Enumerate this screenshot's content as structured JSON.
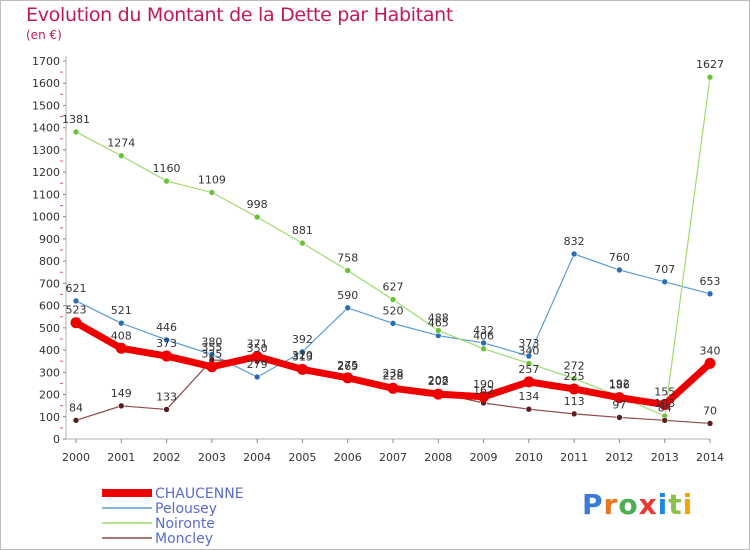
{
  "title": "Evolution du Montant de la Dette par Habitant",
  "unit": "(en €)",
  "logo": {
    "text": "Proxiti",
    "colors": [
      "#3a7bd5",
      "#e87722",
      "#4caf50",
      "#e53935",
      "#1e88e5",
      "#8bc34a",
      "#f4a300"
    ]
  },
  "chart_data": {
    "type": "line",
    "title": "Evolution du Montant de la Dette par Habitant",
    "ylabel": "(en €)",
    "xlabel": "",
    "ylim": [
      0,
      1700
    ],
    "yticks": [
      0,
      100,
      200,
      300,
      400,
      500,
      600,
      700,
      800,
      900,
      1000,
      1100,
      1200,
      1300,
      1400,
      1500,
      1600,
      1700
    ],
    "grid": false,
    "legend_position": "bottom-left",
    "x": [
      "2000",
      "2001",
      "2002",
      "2003",
      "2004",
      "2005",
      "2006",
      "2007",
      "2008",
      "2009",
      "2010",
      "2011",
      "2012",
      "2013",
      "2014"
    ],
    "series": [
      {
        "name": "Pelousey",
        "color": "#5b9bd5",
        "marker": "#2a6db5",
        "width": 1.2,
        "values": [
          621,
          521,
          446,
          380,
          279,
          392,
          590,
          520,
          465,
          432,
          373,
          832,
          760,
          707,
          653
        ]
      },
      {
        "name": "Noironte",
        "color": "#9fdb6f",
        "marker": "#6cc03a",
        "width": 1.2,
        "values": [
          1381,
          1274,
          1160,
          1109,
          998,
          881,
          758,
          627,
          488,
          406,
          340,
          272,
          192,
          103,
          1627
        ]
      },
      {
        "name": "Moncley",
        "color": "#8b4a4a",
        "marker": "#5a1e1e",
        "width": 1.2,
        "values": [
          84,
          149,
          133,
          355,
          350,
          320,
          269,
          238,
          208,
          162,
          134,
          113,
          97,
          84,
          70
        ]
      },
      {
        "name": "CHAUCENNE",
        "color": "#ee0000",
        "marker": "#ee0000",
        "width": 7,
        "values": [
          523,
          408,
          373,
          325,
          371,
          313,
          275,
          228,
          202,
          190,
          257,
          225,
          186,
          155,
          340
        ]
      }
    ],
    "legend_order": [
      "CHAUCENNE",
      "Pelousey",
      "Noironte",
      "Moncley"
    ]
  }
}
